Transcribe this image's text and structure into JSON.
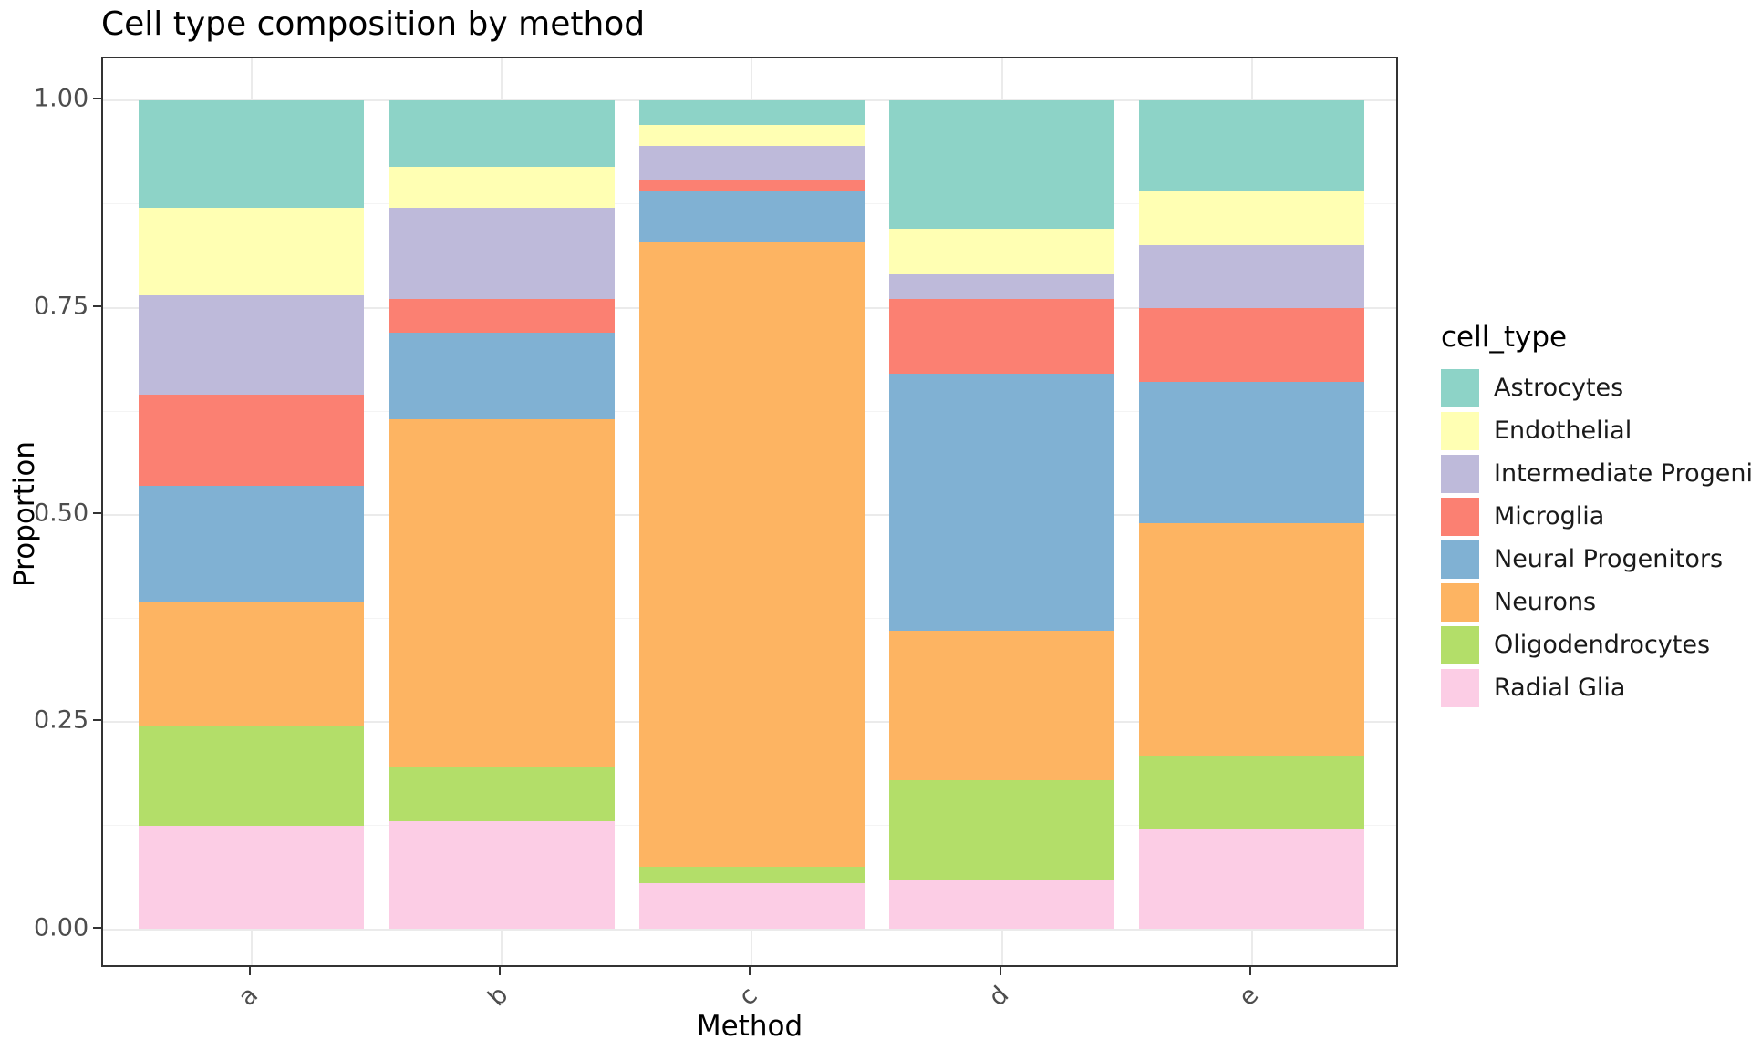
{
  "title": "Cell type composition by method",
  "x_axis": {
    "label": "Method",
    "categories": [
      "a",
      "b",
      "c",
      "d",
      "e"
    ]
  },
  "y_axis": {
    "label": "Proportion",
    "tick_labels": [
      "0.00",
      "0.25",
      "0.50",
      "0.75",
      "1.00"
    ]
  },
  "legend": {
    "title": "cell_type"
  },
  "chart_data": {
    "type": "bar",
    "stacked": true,
    "stack_order": "first_series_on_top",
    "title": "Cell type composition by method",
    "xlabel": "Method",
    "ylabel": "Proportion",
    "categories": [
      "a",
      "b",
      "c",
      "d",
      "e"
    ],
    "ylim": [
      0,
      1
    ],
    "yticks": [
      0,
      0.25,
      0.5,
      0.75,
      1.0
    ],
    "ytick_labels": [
      "0.00",
      "0.25",
      "0.50",
      "0.75",
      "1.00"
    ],
    "minor_yticks": [
      0.125,
      0.375,
      0.625,
      0.875
    ],
    "grid": true,
    "legend_position": "right",
    "bar_width_fraction": 0.9,
    "series": [
      {
        "name": "Astrocytes",
        "color": "#8dd3c7",
        "values": [
          0.13,
          0.08,
          0.03,
          0.155,
          0.11
        ]
      },
      {
        "name": "Endothelial",
        "color": "#ffffb3",
        "values": [
          0.105,
          0.05,
          0.025,
          0.055,
          0.065
        ]
      },
      {
        "name": "Intermediate Progenitors",
        "color": "#bebada",
        "values": [
          0.12,
          0.11,
          0.04,
          0.03,
          0.075
        ]
      },
      {
        "name": "Microglia",
        "color": "#fb8072",
        "values": [
          0.11,
          0.04,
          0.015,
          0.09,
          0.09
        ]
      },
      {
        "name": "Neural Progenitors",
        "color": "#80b1d3",
        "values": [
          0.14,
          0.105,
          0.06,
          0.31,
          0.17
        ]
      },
      {
        "name": "Neurons",
        "color": "#fdb462",
        "values": [
          0.15,
          0.42,
          0.755,
          0.18,
          0.28
        ]
      },
      {
        "name": "Oligodendrocytes",
        "color": "#b3de69",
        "values": [
          0.12,
          0.065,
          0.02,
          0.12,
          0.09
        ]
      },
      {
        "name": "Radial Glia",
        "color": "#fcCde5",
        "values": [
          0.125,
          0.13,
          0.055,
          0.06,
          0.12
        ]
      }
    ]
  }
}
